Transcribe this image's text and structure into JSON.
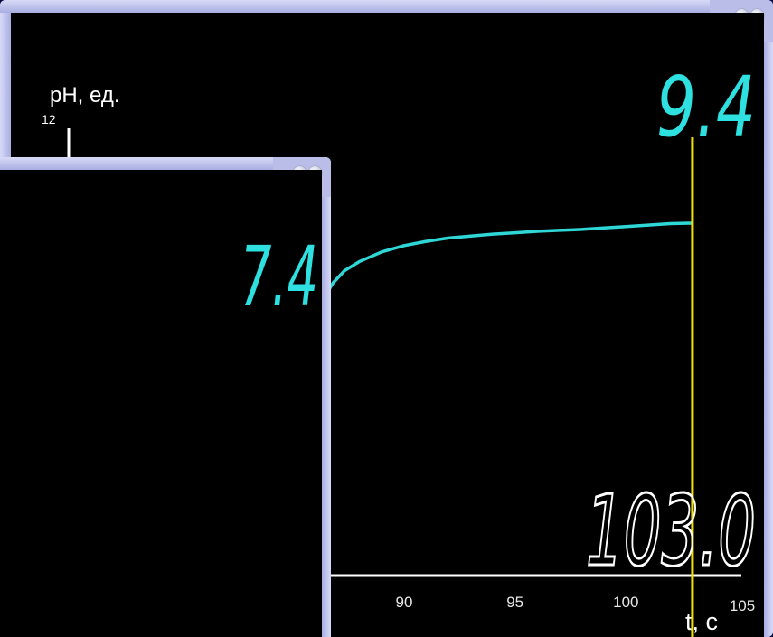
{
  "main_window": {
    "y_axis_label": "pH, ед.",
    "y_axis_max_tick": "12",
    "x_axis_label": "t, с",
    "x_ticks": [
      "90",
      "95",
      "100",
      "105"
    ],
    "readout_ph": "9.4",
    "readout_time": "103.0",
    "icons": [
      "minimize-icon",
      "restore-icon"
    ]
  },
  "inset_window": {
    "readout_ph": "7.4",
    "icons": [
      "minimize-icon",
      "restore-icon"
    ]
  },
  "colors": {
    "curve": "#2fd6d6",
    "cursor": "#f0e000",
    "readout_ph": "#2fe0e0",
    "readout_time": "#ffffff",
    "axis": "#ffffff",
    "frame": "#b9bde8"
  },
  "chart_data": {
    "type": "line",
    "xlabel": "t, с",
    "ylabel": "pH, ед.",
    "xlim": [
      86,
      106
    ],
    "ylim": [
      0,
      12
    ],
    "x_ticks": [
      90,
      95,
      100,
      105
    ],
    "cursor_x": 103.0,
    "cursor_y": 9.4,
    "series": [
      {
        "x": [
          86.1,
          86.4,
          86.8,
          87.3,
          88.0,
          89.0,
          90.0,
          91.0,
          92.0,
          93.0,
          94.0,
          95.0,
          96.0,
          97.0,
          98.0,
          99.0,
          100.0,
          101.0,
          102.0,
          103.0
        ],
        "y": [
          7.4,
          7.8,
          8.1,
          8.35,
          8.55,
          8.75,
          8.88,
          8.97,
          9.04,
          9.08,
          9.12,
          9.15,
          9.18,
          9.2,
          9.22,
          9.25,
          9.28,
          9.31,
          9.34,
          9.35
        ]
      }
    ]
  }
}
